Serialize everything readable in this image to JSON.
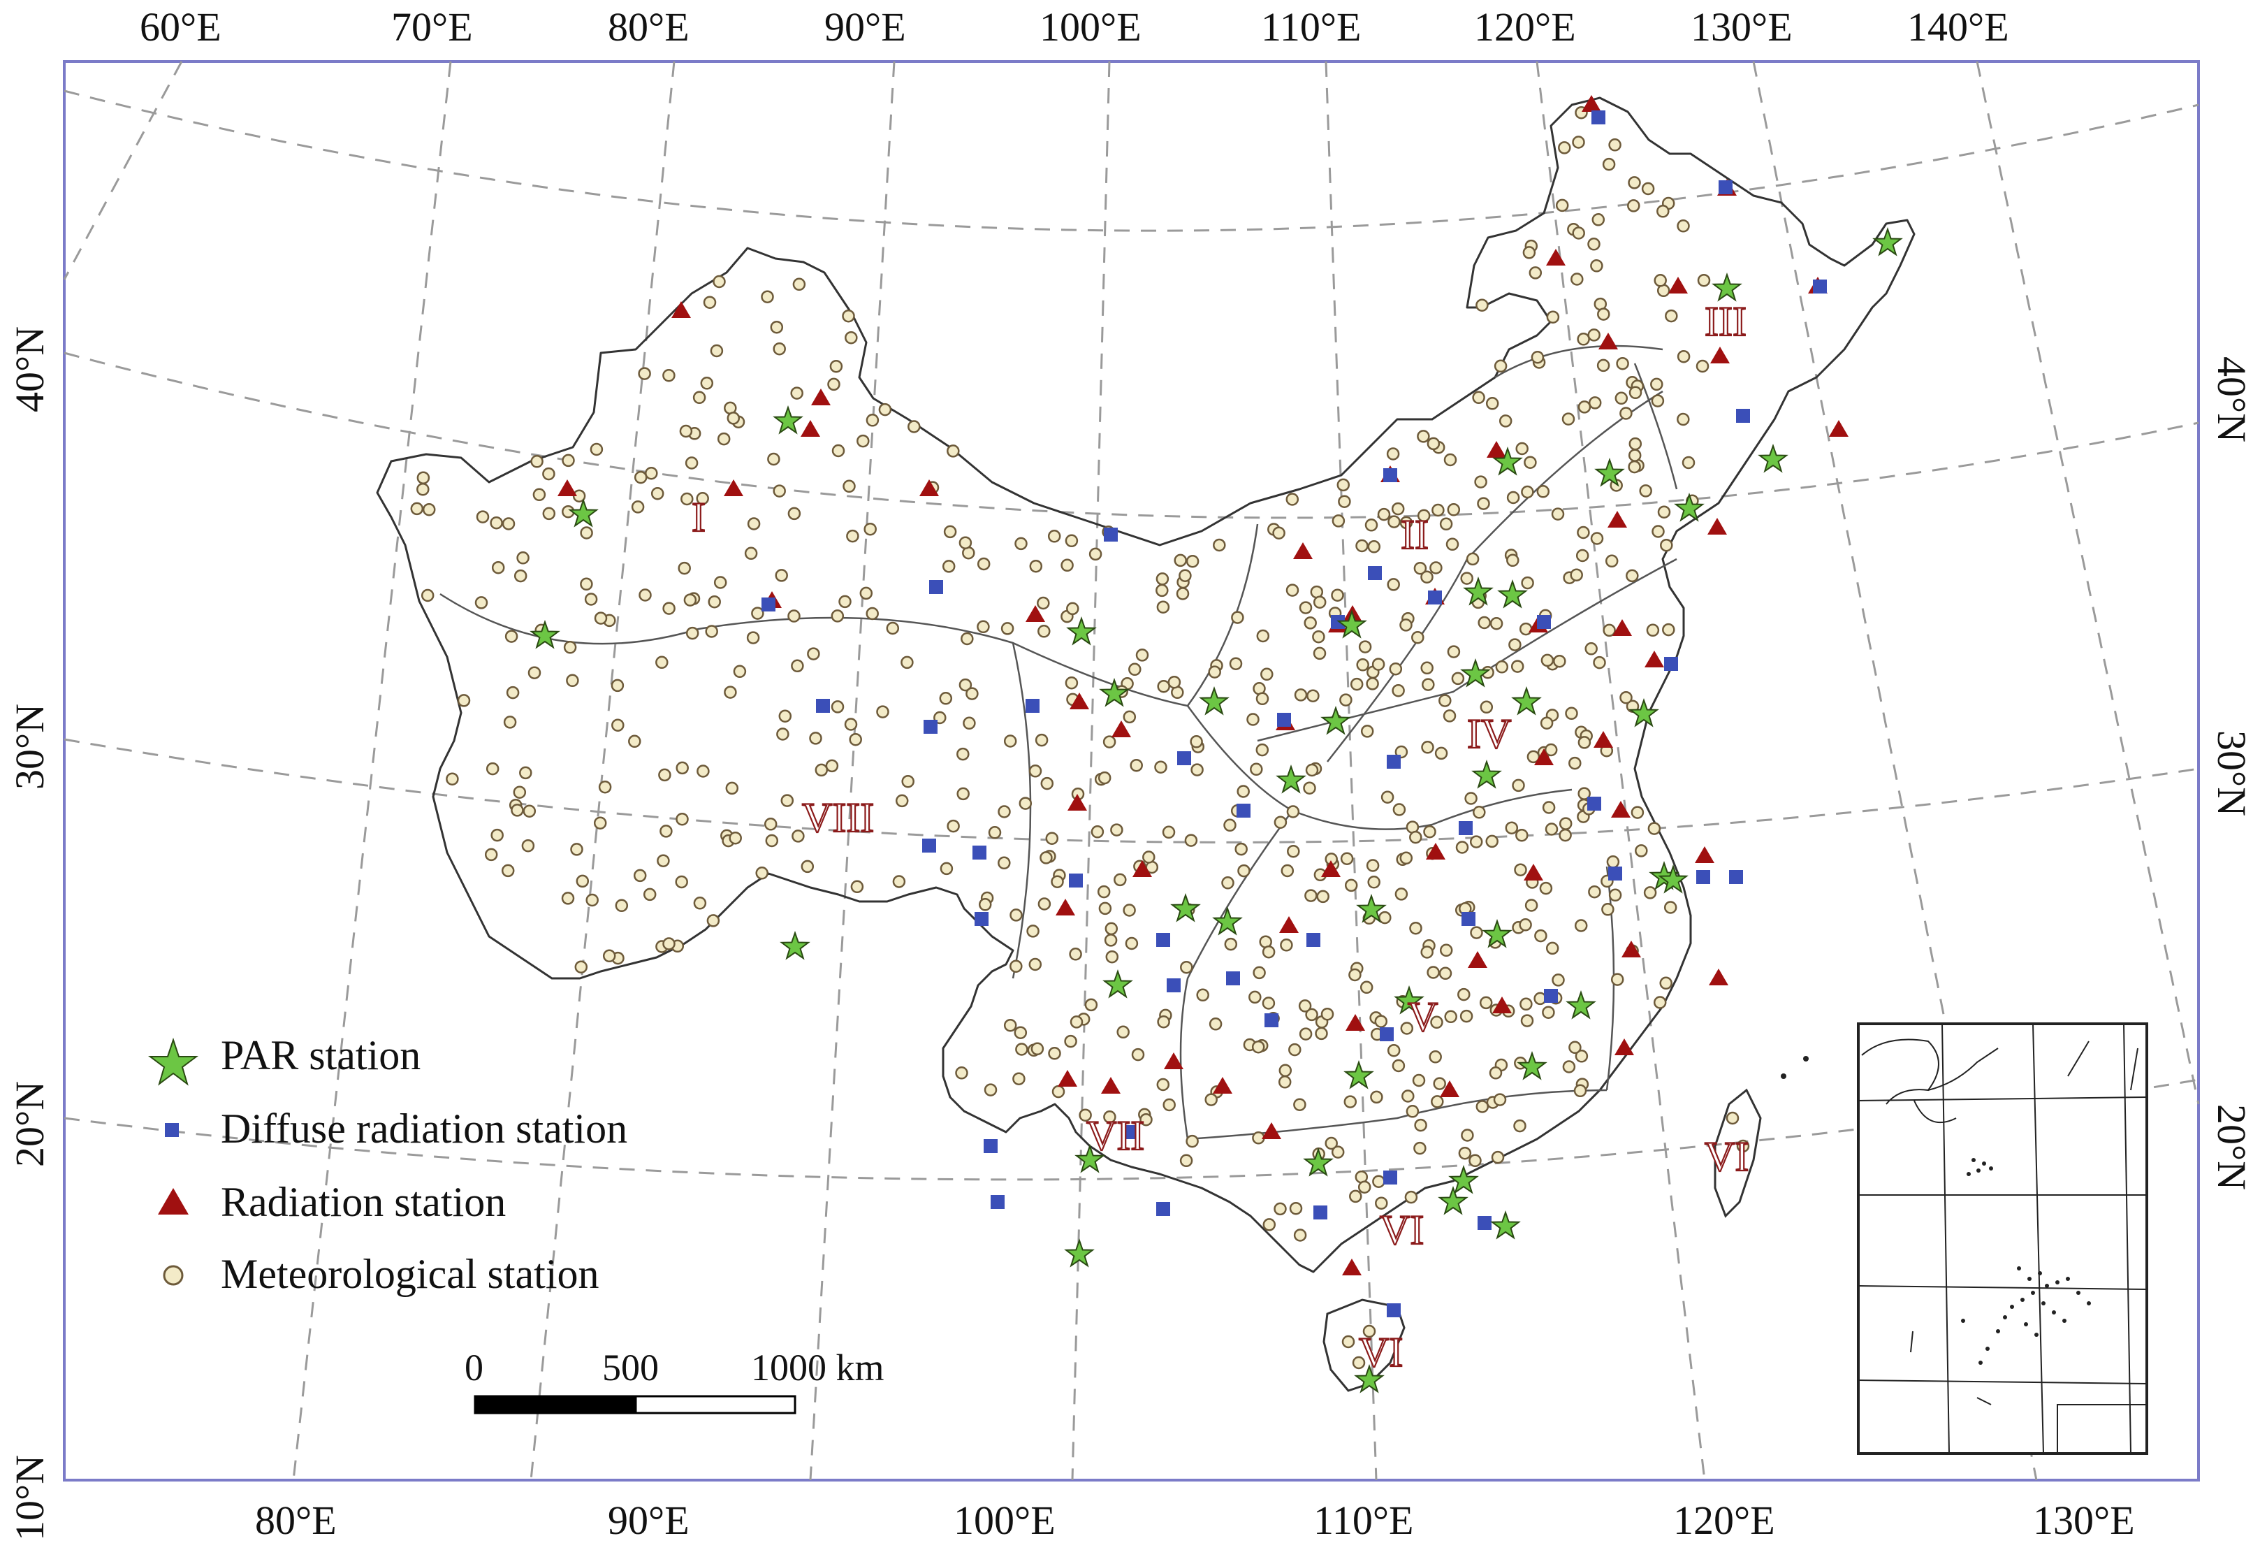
{
  "map": {
    "top_lon_labels": [
      "60°E",
      "70°E",
      "80°E",
      "90°E",
      "100°E",
      "110°E",
      "120°E",
      "130°E",
      "140°E"
    ],
    "bottom_lon_labels": [
      "80°E",
      "90°E",
      "100°E",
      "110°E",
      "120°E",
      "130°E"
    ],
    "left_lat_labels": [
      "10°N",
      "20°N",
      "30°N",
      "40°N"
    ],
    "right_lat_labels": [
      "20°N",
      "30°N",
      "40°N"
    ],
    "regions": [
      "I",
      "II",
      "III",
      "IV",
      "V",
      "VI",
      "VI",
      "VI",
      "VII",
      "VIII"
    ],
    "legend": {
      "par": "PAR station",
      "diffuse": "Diffuse radiation station",
      "radiation": "Radiation station",
      "meteorological": "Meteorological station"
    },
    "scale_bar": {
      "zero": "0",
      "mid": "500",
      "end": "1000 km"
    },
    "colors": {
      "frame": "#7b7bc8",
      "par_star": "#6cc644",
      "diffuse_square": "#3b4fb8",
      "radiation_triangle": "#a01010",
      "meteo_fill": "#f3ebc8",
      "meteo_stroke": "#6d5a3a"
    }
  }
}
